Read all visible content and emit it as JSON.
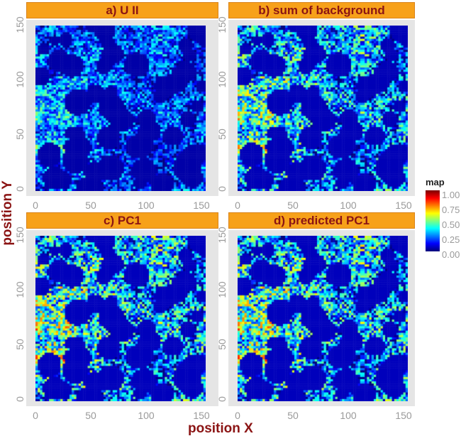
{
  "chart_data": {
    "type": "heatmap",
    "xlabel": "position X",
    "ylabel": "position Y",
    "xlim": [
      0,
      150
    ],
    "ylim": [
      0,
      150
    ],
    "x_ticks": [
      "0",
      "50",
      "100",
      "150"
    ],
    "y_ticks": [
      "0",
      "50",
      "100",
      "150"
    ],
    "colorbar": {
      "title": "map",
      "range": [
        0,
        1
      ],
      "ticks": [
        "1.00",
        "0.75",
        "0.50",
        "0.25",
        "0.00"
      ],
      "colormap": "jet",
      "colors": [
        "#00008f",
        "#0000ff",
        "#00ffff",
        "#ffff00",
        "#ff0000",
        "#800000"
      ],
      "placement": "right"
    },
    "panels": [
      {
        "title": "a) U II"
      },
      {
        "title": "b) sum of background"
      },
      {
        "title": "c) PC1"
      },
      {
        "title": "d) predicted PC1"
      }
    ],
    "strip_color": "#f7a11a",
    "panel_background": "#e5e5e5"
  }
}
